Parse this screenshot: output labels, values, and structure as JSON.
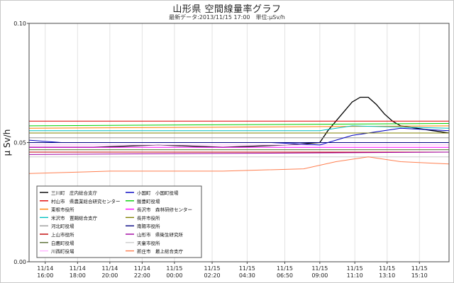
{
  "title": "山形県 空間線量率グラフ",
  "subtitle": "最新データ:2013/11/15 17:00　単位:μSv/h",
  "chart_data": {
    "type": "line",
    "ylabel": "μ Sv/h",
    "ylim": [
      0.0,
      0.1
    ],
    "yticks": [
      {
        "value": 0.0,
        "label": "0.00"
      },
      {
        "value": 0.05,
        "label": "0.05"
      },
      {
        "value": 0.1,
        "label": "0.10"
      }
    ],
    "xrange": [
      "2013-11-14 15:00",
      "2013-11-15 17:00"
    ],
    "xticks": [
      {
        "time": "2013-11-14 16:00",
        "date": "11/14",
        "clock": "16:00"
      },
      {
        "time": "2013-11-14 18:00",
        "date": "11/14",
        "clock": "18:00"
      },
      {
        "time": "2013-11-14 20:00",
        "date": "11/14",
        "clock": "20:00"
      },
      {
        "time": "2013-11-14 22:00",
        "date": "11/14",
        "clock": "22:00"
      },
      {
        "time": "2013-11-15 00:00",
        "date": "11/15",
        "clock": "00:00"
      },
      {
        "time": "2013-11-15 02:20",
        "date": "11/15",
        "clock": "02:20"
      },
      {
        "time": "2013-11-15 04:30",
        "date": "11/15",
        "clock": "04:30"
      },
      {
        "time": "2013-11-15 06:50",
        "date": "11/15",
        "clock": "06:50"
      },
      {
        "time": "2013-11-15 09:00",
        "date": "11/15",
        "clock": "09:00"
      },
      {
        "time": "2013-11-15 11:10",
        "date": "11/15",
        "clock": "11:10"
      },
      {
        "time": "2013-11-15 13:10",
        "date": "11/15",
        "clock": "13:10"
      },
      {
        "time": "2013-11-15 15:10",
        "date": "11/15",
        "clock": "15:10"
      }
    ],
    "grid": true,
    "legend_position": "lower-left",
    "series": [
      {
        "name": "三川町　庄内総合支庁",
        "color": "#000000",
        "values": [
          [
            "2013-11-14 15:00",
            0.048
          ],
          [
            "2013-11-14 19:00",
            0.048
          ],
          [
            "2013-11-14 23:00",
            0.049
          ],
          [
            "2013-11-15 03:00",
            0.048
          ],
          [
            "2013-11-15 07:00",
            0.049
          ],
          [
            "2013-11-15 09:00",
            0.05
          ],
          [
            "2013-11-15 09:30",
            0.055
          ],
          [
            "2013-11-15 10:00",
            0.059
          ],
          [
            "2013-11-15 10:30",
            0.063
          ],
          [
            "2013-11-15 11:00",
            0.067
          ],
          [
            "2013-11-15 11:30",
            0.069
          ],
          [
            "2013-11-15 12:00",
            0.069
          ],
          [
            "2013-11-15 12:30",
            0.066
          ],
          [
            "2013-11-15 13:00",
            0.062
          ],
          [
            "2013-11-15 13:30",
            0.059
          ],
          [
            "2013-11-15 14:00",
            0.057
          ],
          [
            "2013-11-15 15:00",
            0.056
          ],
          [
            "2013-11-15 16:00",
            0.055
          ],
          [
            "2013-11-15 17:00",
            0.054
          ]
        ]
      },
      {
        "name": "村山市　県農業総合研究センター",
        "color": "#e00000",
        "values": [
          [
            "2013-11-14 15:00",
            0.059
          ],
          [
            "2013-11-15 17:00",
            0.059
          ]
        ]
      },
      {
        "name": "東根市役所",
        "color": "#ff8000",
        "values": [
          [
            "2013-11-14 15:00",
            0.056
          ],
          [
            "2013-11-15 17:00",
            0.057
          ]
        ]
      },
      {
        "name": "米沢市　置賜総合支庁",
        "color": "#00c0c0",
        "values": [
          [
            "2013-11-14 15:00",
            0.055
          ],
          [
            "2013-11-15 09:00",
            0.055
          ],
          [
            "2013-11-15 11:00",
            0.057
          ],
          [
            "2013-11-15 17:00",
            0.056
          ]
        ]
      },
      {
        "name": "河北町役場",
        "color": "#999999",
        "values": [
          [
            "2013-11-14 15:00",
            0.052
          ],
          [
            "2013-11-15 17:00",
            0.052
          ]
        ]
      },
      {
        "name": "上山市役所",
        "color": "#c00000",
        "values": [
          [
            "2013-11-14 15:00",
            0.046
          ],
          [
            "2013-11-15 17:00",
            0.046
          ]
        ]
      },
      {
        "name": "白鷹町役場",
        "color": "#556b2f",
        "values": [
          [
            "2013-11-14 15:00",
            0.047
          ],
          [
            "2013-11-15 17:00",
            0.047
          ]
        ]
      },
      {
        "name": "川西町役場",
        "color": "#ffb3ff",
        "values": [
          [
            "2013-11-14 15:00",
            0.049
          ],
          [
            "2013-11-15 17:00",
            0.049
          ]
        ]
      },
      {
        "name": "小国町　小国町役場",
        "color": "#0000c0",
        "values": [
          [
            "2013-11-14 15:00",
            0.051
          ],
          [
            "2013-11-14 17:00",
            0.05
          ],
          [
            "2013-11-15 06:00",
            0.05
          ],
          [
            "2013-11-15 09:00",
            0.049
          ],
          [
            "2013-11-15 11:00",
            0.053
          ],
          [
            "2013-11-15 14:00",
            0.056
          ],
          [
            "2013-11-15 17:00",
            0.055
          ]
        ]
      },
      {
        "name": "飯豊町役場",
        "color": "#00d000",
        "values": [
          [
            "2013-11-14 15:00",
            0.057
          ],
          [
            "2013-11-15 17:00",
            0.058
          ]
        ]
      },
      {
        "name": "長沢市　森林研修センター",
        "color": "#ff00ff",
        "values": [
          [
            "2013-11-14 15:00",
            0.048
          ],
          [
            "2013-11-15 17:00",
            0.048
          ]
        ]
      },
      {
        "name": "長井市役所",
        "color": "#808000",
        "values": [
          [
            "2013-11-14 15:00",
            0.054
          ],
          [
            "2013-11-15 17:00",
            0.054
          ]
        ]
      },
      {
        "name": "南陽市役所",
        "color": "#000080",
        "values": [
          [
            "2013-11-14 15:00",
            0.05
          ],
          [
            "2013-11-15 17:00",
            0.05
          ]
        ]
      },
      {
        "name": "山形市　県衛生研究所",
        "color": "#a000a0",
        "values": [
          [
            "2013-11-14 15:00",
            0.045
          ],
          [
            "2013-11-15 17:00",
            0.046
          ]
        ]
      },
      {
        "name": "天童市役所",
        "color": "#cccccc",
        "values": [
          [
            "2013-11-14 15:00",
            0.044
          ],
          [
            "2013-11-15 17:00",
            0.044
          ]
        ]
      },
      {
        "name": "新庄市　最上総合支庁",
        "color": "#ff7f50",
        "values": [
          [
            "2013-11-14 15:00",
            0.037
          ],
          [
            "2013-11-14 20:00",
            0.038
          ],
          [
            "2013-11-15 03:00",
            0.038
          ],
          [
            "2013-11-15 08:00",
            0.039
          ],
          [
            "2013-11-15 10:00",
            0.042
          ],
          [
            "2013-11-15 12:00",
            0.044
          ],
          [
            "2013-11-15 14:00",
            0.042
          ],
          [
            "2013-11-15 17:00",
            0.041
          ]
        ]
      }
    ]
  }
}
